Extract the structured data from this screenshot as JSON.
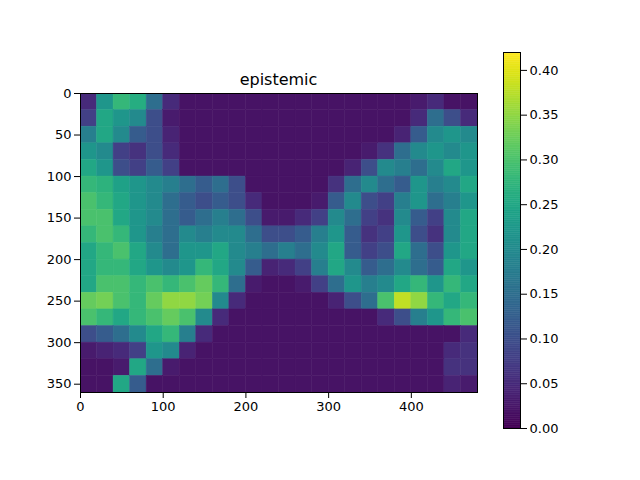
{
  "chart_data": {
    "type": "heatmap",
    "title": "epistemic",
    "color": "viridis",
    "xlim": [
      0,
      480
    ],
    "xticks": [
      0,
      100,
      200,
      300,
      400
    ],
    "ylim": [
      360,
      0
    ],
    "yticks": [
      0,
      50,
      100,
      150,
      200,
      250,
      300,
      350
    ],
    "colorbar": {
      "lim": [
        0,
        0.42
      ],
      "ticks": [
        {
          "value": 0,
          "label": "0.00"
        },
        {
          "value": 0.05,
          "label": "0.05"
        },
        {
          "value": 0.1,
          "label": "0.10"
        },
        {
          "value": 0.15,
          "label": "0.15"
        },
        {
          "value": 0.2,
          "label": "0.20"
        },
        {
          "value": 0.25,
          "label": "0.25"
        },
        {
          "value": 0.3,
          "label": "0.30"
        },
        {
          "value": 0.35,
          "label": "0.35"
        },
        {
          "value": 0.4,
          "label": "0.40"
        }
      ]
    },
    "cells": [
      [
        0.05,
        0.22,
        0.28,
        0.26,
        0.15,
        0.05,
        0.02,
        0.02,
        0.02,
        0.02,
        0.02,
        0.02,
        0.02,
        0.02,
        0.02,
        0.02,
        0.02,
        0.02,
        0.02,
        0.02,
        0.03,
        0.05,
        0.02,
        0.02
      ],
      [
        0.08,
        0.25,
        0.22,
        0.2,
        0.1,
        0.03,
        0.02,
        0.02,
        0.02,
        0.02,
        0.02,
        0.02,
        0.02,
        0.02,
        0.02,
        0.02,
        0.02,
        0.02,
        0.02,
        0.02,
        0.05,
        0.15,
        0.1,
        0.05
      ],
      [
        0.18,
        0.25,
        0.2,
        0.12,
        0.1,
        0.04,
        0.02,
        0.02,
        0.02,
        0.02,
        0.02,
        0.02,
        0.02,
        0.02,
        0.02,
        0.02,
        0.02,
        0.02,
        0.02,
        0.04,
        0.12,
        0.2,
        0.22,
        0.2
      ],
      [
        0.22,
        0.2,
        0.08,
        0.06,
        0.1,
        0.05,
        0.02,
        0.02,
        0.02,
        0.02,
        0.02,
        0.02,
        0.02,
        0.02,
        0.02,
        0.02,
        0.02,
        0.03,
        0.06,
        0.15,
        0.2,
        0.22,
        0.2,
        0.22
      ],
      [
        0.25,
        0.22,
        0.1,
        0.08,
        0.12,
        0.08,
        0.02,
        0.02,
        0.02,
        0.02,
        0.02,
        0.02,
        0.02,
        0.02,
        0.02,
        0.02,
        0.04,
        0.1,
        0.2,
        0.18,
        0.15,
        0.2,
        0.25,
        0.22
      ],
      [
        0.28,
        0.27,
        0.24,
        0.22,
        0.2,
        0.18,
        0.15,
        0.12,
        0.15,
        0.1,
        0.02,
        0.02,
        0.02,
        0.02,
        0.02,
        0.06,
        0.15,
        0.2,
        0.15,
        0.12,
        0.22,
        0.18,
        0.2,
        0.25
      ],
      [
        0.3,
        0.28,
        0.25,
        0.22,
        0.2,
        0.15,
        0.12,
        0.1,
        0.12,
        0.1,
        0.05,
        0.02,
        0.02,
        0.02,
        0.03,
        0.12,
        0.2,
        0.1,
        0.08,
        0.18,
        0.22,
        0.15,
        0.18,
        0.22
      ],
      [
        0.3,
        0.3,
        0.25,
        0.22,
        0.2,
        0.15,
        0.12,
        0.15,
        0.18,
        0.15,
        0.1,
        0.03,
        0.03,
        0.05,
        0.08,
        0.2,
        0.15,
        0.08,
        0.06,
        0.2,
        0.12,
        0.08,
        0.2,
        0.25
      ],
      [
        0.28,
        0.3,
        0.28,
        0.22,
        0.18,
        0.15,
        0.2,
        0.18,
        0.2,
        0.2,
        0.15,
        0.1,
        0.1,
        0.12,
        0.18,
        0.22,
        0.12,
        0.06,
        0.08,
        0.22,
        0.1,
        0.06,
        0.2,
        0.25
      ],
      [
        0.25,
        0.28,
        0.3,
        0.25,
        0.2,
        0.15,
        0.22,
        0.22,
        0.25,
        0.2,
        0.18,
        0.15,
        0.18,
        0.15,
        0.2,
        0.25,
        0.12,
        0.08,
        0.1,
        0.25,
        0.15,
        0.1,
        0.22,
        0.25
      ],
      [
        0.25,
        0.28,
        0.28,
        0.25,
        0.22,
        0.2,
        0.22,
        0.28,
        0.25,
        0.2,
        0.12,
        0.04,
        0.05,
        0.08,
        0.18,
        0.25,
        0.2,
        0.12,
        0.15,
        0.2,
        0.15,
        0.12,
        0.25,
        0.22
      ],
      [
        0.25,
        0.3,
        0.3,
        0.28,
        0.3,
        0.28,
        0.3,
        0.32,
        0.28,
        0.15,
        0.03,
        0.02,
        0.02,
        0.03,
        0.08,
        0.15,
        0.22,
        0.18,
        0.2,
        0.25,
        0.28,
        0.22,
        0.28,
        0.25
      ],
      [
        0.32,
        0.33,
        0.3,
        0.28,
        0.32,
        0.35,
        0.35,
        0.33,
        0.2,
        0.05,
        0.02,
        0.02,
        0.02,
        0.02,
        0.02,
        0.04,
        0.1,
        0.15,
        0.3,
        0.38,
        0.35,
        0.28,
        0.25,
        0.28
      ],
      [
        0.3,
        0.28,
        0.25,
        0.28,
        0.3,
        0.32,
        0.3,
        0.2,
        0.05,
        0.02,
        0.02,
        0.02,
        0.02,
        0.02,
        0.02,
        0.02,
        0.02,
        0.02,
        0.05,
        0.1,
        0.18,
        0.22,
        0.28,
        0.3
      ],
      [
        0.1,
        0.12,
        0.15,
        0.2,
        0.25,
        0.28,
        0.18,
        0.05,
        0.02,
        0.02,
        0.02,
        0.02,
        0.02,
        0.02,
        0.02,
        0.02,
        0.02,
        0.02,
        0.02,
        0.02,
        0.02,
        0.02,
        0.02,
        0.05
      ],
      [
        0.03,
        0.04,
        0.05,
        0.08,
        0.22,
        0.2,
        0.04,
        0.02,
        0.02,
        0.02,
        0.02,
        0.02,
        0.02,
        0.02,
        0.02,
        0.02,
        0.02,
        0.02,
        0.02,
        0.02,
        0.02,
        0.02,
        0.05,
        0.06
      ],
      [
        0.02,
        0.02,
        0.03,
        0.25,
        0.15,
        0.03,
        0.02,
        0.02,
        0.02,
        0.02,
        0.02,
        0.02,
        0.02,
        0.02,
        0.02,
        0.02,
        0.02,
        0.02,
        0.02,
        0.02,
        0.02,
        0.02,
        0.06,
        0.06
      ],
      [
        0.02,
        0.02,
        0.25,
        0.12,
        0.02,
        0.02,
        0.02,
        0.02,
        0.02,
        0.02,
        0.02,
        0.02,
        0.02,
        0.02,
        0.02,
        0.02,
        0.02,
        0.02,
        0.02,
        0.02,
        0.02,
        0.02,
        0.04,
        0.03
      ]
    ]
  }
}
